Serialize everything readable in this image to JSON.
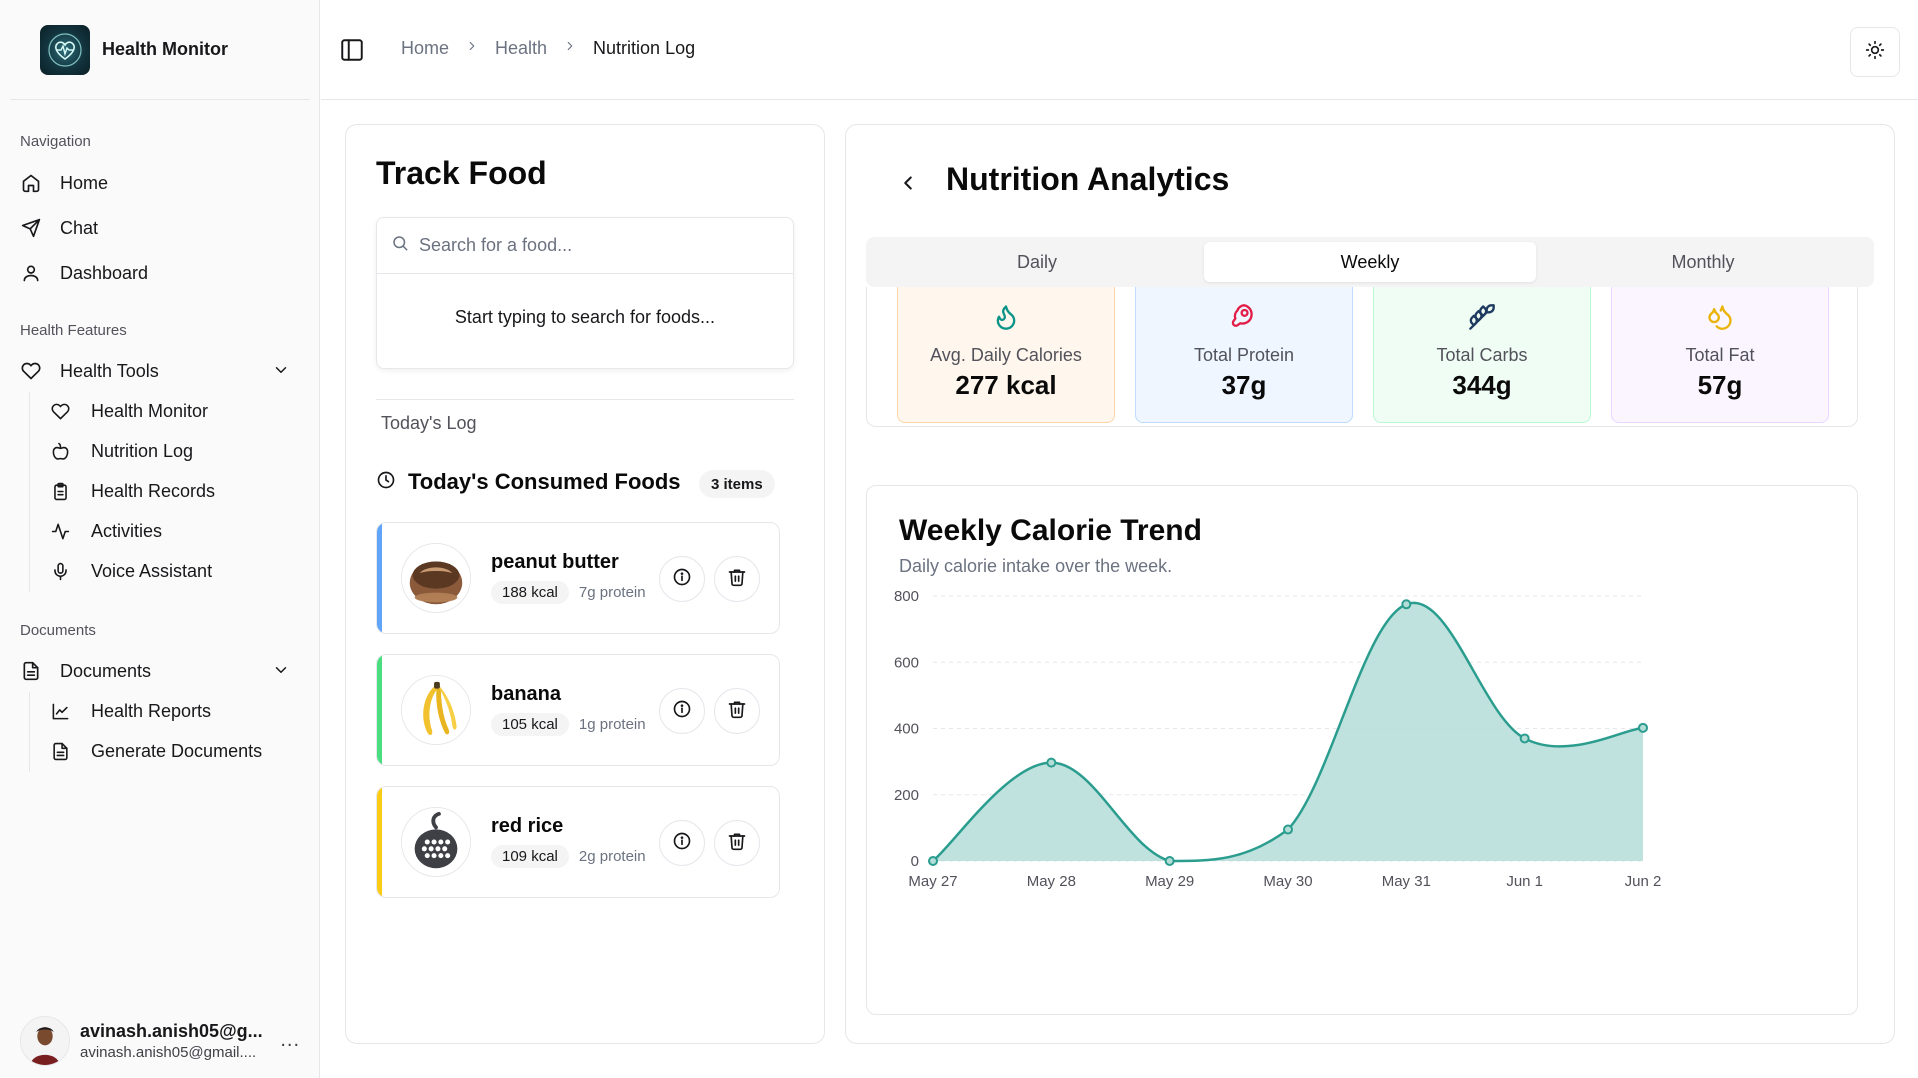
{
  "sidebar": {
    "brand": "Health Monitor",
    "groups": [
      {
        "label": "Navigation"
      },
      {
        "label": "Health Features"
      },
      {
        "label": "Documents"
      }
    ],
    "nav": [
      {
        "label": "Home",
        "icon": "home-icon"
      },
      {
        "label": "Chat",
        "icon": "send-icon"
      },
      {
        "label": "Dashboard",
        "icon": "user-icon"
      }
    ],
    "health_tools": {
      "label": "Health Tools",
      "items": [
        {
          "label": "Health Monitor",
          "icon": "heart-icon"
        },
        {
          "label": "Nutrition Log",
          "icon": "apple-icon"
        },
        {
          "label": "Health Records",
          "icon": "clipboard-icon"
        },
        {
          "label": "Activities",
          "icon": "activity-icon"
        },
        {
          "label": "Voice Assistant",
          "icon": "mic-icon"
        }
      ]
    },
    "documents": {
      "label": "Documents",
      "items": [
        {
          "label": "Health Reports",
          "icon": "line-chart-icon"
        },
        {
          "label": "Generate Documents",
          "icon": "file-text-icon"
        }
      ]
    },
    "user": {
      "name": "avinash.anish05@g...",
      "email": "avinash.anish05@gmail....",
      "more": "..."
    }
  },
  "header": {
    "breadcrumbs": [
      "Home",
      "Health",
      "Nutrition Log"
    ]
  },
  "track": {
    "title": "Track Food",
    "search_placeholder": "Search for a food...",
    "search_hint": "Start typing to search for foods...",
    "log_label": "Today's Log",
    "consumed_title": "Today's Consumed Foods",
    "items_badge": "3 items",
    "foods": [
      {
        "name": "peanut butter",
        "kcal": "188 kcal",
        "protein": "7g protein",
        "accent": "#60a5fa"
      },
      {
        "name": "banana",
        "kcal": "105 kcal",
        "protein": "1g protein",
        "accent": "#4ade80"
      },
      {
        "name": "red rice",
        "kcal": "109 kcal",
        "protein": "2g protein",
        "accent": "#facc15"
      }
    ]
  },
  "analytics": {
    "title": "Nutrition Analytics",
    "tabs": [
      "Daily",
      "Weekly",
      "Monthly"
    ],
    "active_tab": "Weekly",
    "stats": [
      {
        "label": "Avg. Daily Calories",
        "value": "277 kcal",
        "icon": "flame-icon",
        "bg": "#fff7ed",
        "border": "#fed7aa",
        "color": "#0d9488"
      },
      {
        "label": "Total Protein",
        "value": "37g",
        "icon": "beef-icon",
        "bg": "#eff6ff",
        "border": "#bfdbfe",
        "color": "#e11d48"
      },
      {
        "label": "Total Carbs",
        "value": "344g",
        "icon": "wheat-icon",
        "bg": "#f0fdf4",
        "border": "#bbf7d0",
        "color": "#1e3a5f"
      },
      {
        "label": "Total Fat",
        "value": "57g",
        "icon": "droplets-icon",
        "bg": "#faf5ff",
        "border": "#e9d5ff",
        "color": "#eab308"
      }
    ],
    "trend": {
      "title": "Weekly Calorie Trend",
      "subtitle": "Daily calorie intake over the week."
    }
  },
  "chart_data": {
    "type": "area",
    "title": "Weekly Calorie Trend",
    "subtitle": "Daily calorie intake over the week.",
    "categories": [
      "May 27",
      "May 28",
      "May 29",
      "May 30",
      "May 31",
      "Jun 1",
      "Jun 2"
    ],
    "series": [
      {
        "values": [
          0,
          297,
          0,
          95,
          775,
          370,
          402
        ]
      }
    ],
    "ylim": [
      0,
      800
    ],
    "yticks": [
      0,
      200,
      400,
      600,
      800
    ],
    "grid": "horizontal dashed",
    "line_color": "#2a9d8f",
    "fill_color": "#b5ddd8"
  }
}
